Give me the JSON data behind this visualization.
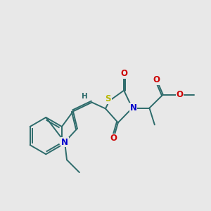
{
  "background_color": "#e8e8e8",
  "bond_color": "#2d6b6b",
  "atom_colors": {
    "S": "#b8b800",
    "N": "#0000cc",
    "O": "#cc0000",
    "H": "#2d6b6b",
    "C": "#2d6b6b"
  },
  "font_size": 8.5,
  "lw": 1.4,
  "doffset": 0.07
}
